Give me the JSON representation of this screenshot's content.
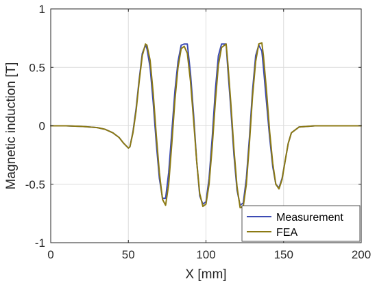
{
  "chart_data": {
    "type": "line",
    "title": "",
    "xlabel": "X [mm]",
    "ylabel": "Magnetic induction [T]",
    "xlim": [
      0,
      200
    ],
    "ylim": [
      -1,
      1
    ],
    "grid": true,
    "legend_location": "bottom-right",
    "x_ticks": [
      0,
      50,
      100,
      150,
      200
    ],
    "y_ticks": [
      -1,
      -0.5,
      0,
      0.5,
      1
    ],
    "x_tick_labels": [
      "0",
      "50",
      "100",
      "150",
      "200"
    ],
    "y_tick_labels": [
      "-1",
      "-0.5",
      "0",
      "0.5",
      "1"
    ],
    "series": [
      {
        "name": "Measurement",
        "color": "#3c4bb4",
        "x": [
          0,
          10,
          20,
          30,
          35,
          40,
          44,
          47,
          50,
          51,
          53,
          55,
          57,
          59,
          61,
          62,
          64,
          66,
          68,
          70,
          72,
          74,
          76,
          78,
          80,
          82,
          84,
          86,
          88,
          90,
          92,
          94,
          96,
          98,
          100,
          102,
          104,
          106,
          108,
          110,
          113,
          114,
          116,
          118,
          120,
          122,
          124,
          126,
          128,
          130,
          132,
          134,
          136,
          137,
          139,
          141,
          143,
          145,
          147,
          149,
          151,
          153,
          155,
          160,
          170,
          180,
          190,
          200
        ],
        "y": [
          0,
          0,
          -0.005,
          -0.015,
          -0.03,
          -0.06,
          -0.1,
          -0.15,
          -0.19,
          -0.18,
          -0.05,
          0.15,
          0.4,
          0.62,
          0.69,
          0.66,
          0.5,
          0.2,
          -0.15,
          -0.45,
          -0.62,
          -0.62,
          -0.4,
          -0.05,
          0.3,
          0.55,
          0.69,
          0.7,
          0.7,
          0.45,
          0.1,
          -0.3,
          -0.6,
          -0.67,
          -0.65,
          -0.45,
          -0.1,
          0.3,
          0.6,
          0.7,
          0.7,
          0.5,
          0.15,
          -0.25,
          -0.55,
          -0.68,
          -0.66,
          -0.45,
          -0.1,
          0.3,
          0.6,
          0.69,
          0.64,
          0.5,
          0.2,
          -0.1,
          -0.35,
          -0.5,
          -0.53,
          -0.45,
          -0.3,
          -0.15,
          -0.06,
          -0.01,
          0,
          0,
          0,
          0
        ]
      },
      {
        "name": "FEA",
        "color": "#8c7a14",
        "x": [
          0,
          10,
          20,
          30,
          35,
          40,
          44,
          47,
          50,
          51,
          53,
          55,
          57,
          59,
          61,
          62,
          64,
          66,
          68,
          70,
          72,
          74,
          76,
          78,
          80,
          82,
          84,
          86,
          88,
          90,
          92,
          94,
          96,
          98,
          100,
          102,
          104,
          106,
          108,
          110,
          113,
          114,
          116,
          118,
          120,
          122,
          124,
          126,
          128,
          130,
          132,
          134,
          136,
          137,
          139,
          141,
          143,
          145,
          147,
          149,
          151,
          153,
          155,
          160,
          170,
          180,
          190,
          200
        ],
        "y": [
          0,
          0,
          -0.005,
          -0.015,
          -0.03,
          -0.06,
          -0.1,
          -0.15,
          -0.19,
          -0.18,
          -0.06,
          0.13,
          0.38,
          0.6,
          0.7,
          0.69,
          0.56,
          0.28,
          -0.08,
          -0.4,
          -0.63,
          -0.68,
          -0.5,
          -0.15,
          0.22,
          0.5,
          0.66,
          0.68,
          0.62,
          0.38,
          0.05,
          -0.3,
          -0.58,
          -0.69,
          -0.67,
          -0.5,
          -0.18,
          0.2,
          0.52,
          0.67,
          0.7,
          0.55,
          0.2,
          -0.2,
          -0.52,
          -0.7,
          -0.69,
          -0.5,
          -0.15,
          0.25,
          0.55,
          0.7,
          0.71,
          0.6,
          0.3,
          -0.05,
          -0.32,
          -0.5,
          -0.54,
          -0.46,
          -0.3,
          -0.15,
          -0.06,
          -0.01,
          0,
          0,
          0,
          0
        ]
      }
    ]
  }
}
